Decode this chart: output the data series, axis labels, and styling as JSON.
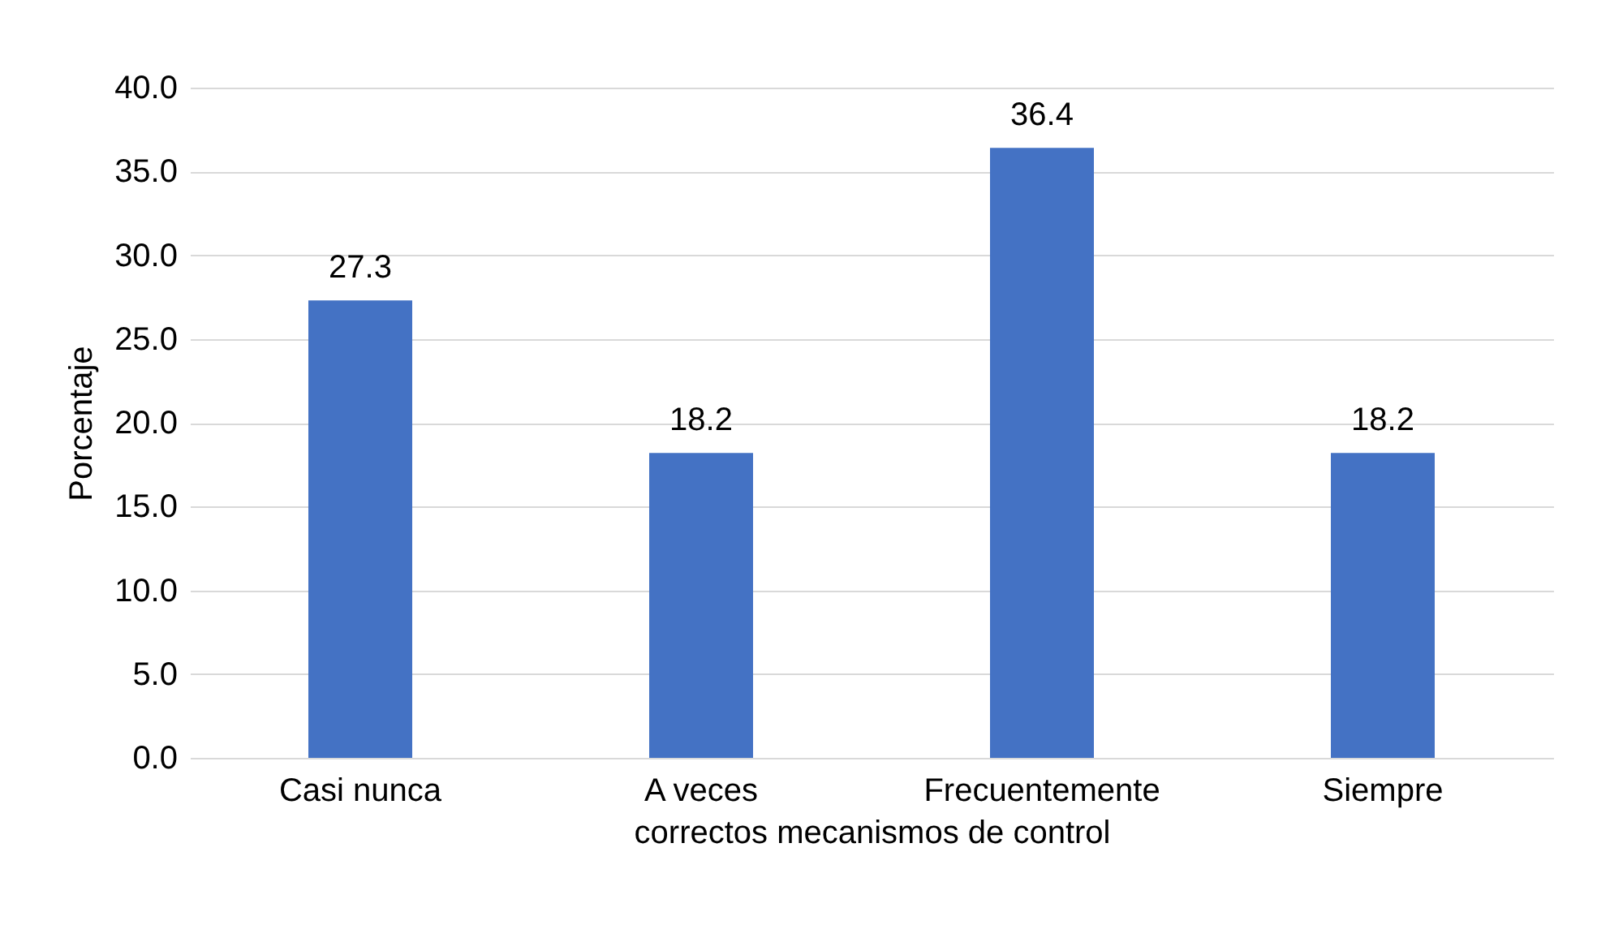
{
  "chart_data": {
    "type": "bar",
    "xlabel": "correctos mecanismos de control",
    "ylabel": "Porcentaje",
    "categories": [
      "Casi nunca",
      "A veces",
      "Frecuentemente",
      "Siempre"
    ],
    "values": [
      27.3,
      18.2,
      36.4,
      18.2
    ],
    "color": "#4472c4",
    "ylim": [
      0,
      40
    ],
    "yticks": [
      {
        "value": 0,
        "label": "0.0"
      },
      {
        "value": 5,
        "label": "5.0"
      },
      {
        "value": 10,
        "label": "10.0"
      },
      {
        "value": 15,
        "label": "15.0"
      },
      {
        "value": 20,
        "label": "20.0"
      },
      {
        "value": 25,
        "label": "25.0"
      },
      {
        "value": 30,
        "label": "30.0"
      },
      {
        "value": 35,
        "label": "35.0"
      },
      {
        "value": 40,
        "label": "40.0"
      }
    ],
    "grid": "y",
    "data_labels": true
  }
}
